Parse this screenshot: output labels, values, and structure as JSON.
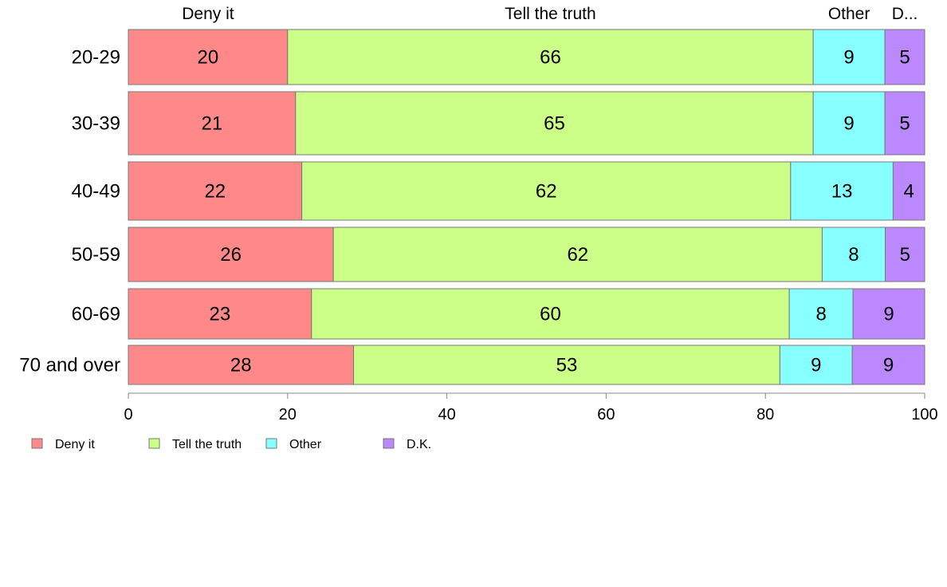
{
  "chart_data": {
    "type": "bar",
    "orientation": "horizontal",
    "stacked": true,
    "categories": [
      "20-29",
      "30-39",
      "40-49",
      "50-59",
      "60-69",
      "70 and over"
    ],
    "series": [
      {
        "name": "Deny it",
        "color": "#ff8888",
        "values": [
          20,
          21,
          22,
          26,
          23,
          28
        ]
      },
      {
        "name": "Tell the truth",
        "color": "#ccff88",
        "values": [
          66,
          65,
          62,
          62,
          60,
          53
        ]
      },
      {
        "name": "Other",
        "color": "#88ffff",
        "values": [
          9,
          9,
          13,
          8,
          8,
          9
        ]
      },
      {
        "name": "D.K.",
        "color": "#bb88ff",
        "values": [
          5,
          5,
          4,
          5,
          9,
          9
        ]
      }
    ],
    "column_headers": [
      "Deny it",
      "Tell the truth",
      "Other",
      "D..."
    ],
    "xlim": [
      0,
      100
    ],
    "x_ticks": [
      "0",
      "20",
      "40",
      "60",
      "80",
      "100"
    ],
    "legend_position": "bottom-left",
    "grid": false
  }
}
